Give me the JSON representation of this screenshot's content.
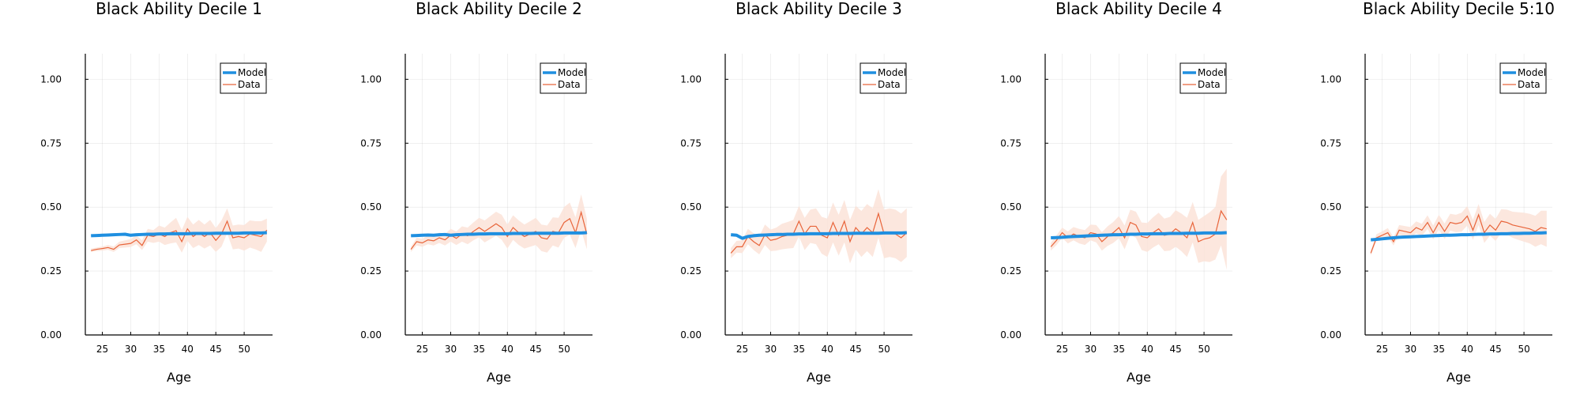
{
  "figure": {
    "xlabel": "Age"
  },
  "colors": {
    "model": "#1f8fe0",
    "data": "#e8643a",
    "band": "#fbe3d8"
  },
  "legend": {
    "placement": "top-right",
    "entries": [
      "Model",
      "Data"
    ]
  },
  "chart_data": [
    {
      "type": "line",
      "title": "Black Ability Decile 1",
      "xlabel": "Age",
      "ylabel": "",
      "xlim": [
        22,
        55
      ],
      "ylim": [
        0,
        1.1
      ],
      "xticks": [
        25,
        30,
        35,
        40,
        45,
        50
      ],
      "yticks": [
        "0.00",
        "0.25",
        "0.50",
        "0.75",
        "1.00"
      ],
      "grid": true,
      "legend": "top-right",
      "x": [
        23,
        24,
        25,
        26,
        27,
        28,
        29,
        30,
        31,
        32,
        33,
        34,
        35,
        36,
        37,
        38,
        39,
        40,
        41,
        42,
        43,
        44,
        45,
        46,
        47,
        48,
        49,
        50,
        51,
        52,
        53,
        54
      ],
      "series": [
        {
          "name": "Model",
          "values": [
            0.388,
            0.389,
            0.39,
            0.391,
            0.392,
            0.393,
            0.394,
            0.39,
            0.392,
            0.393,
            0.394,
            0.394,
            0.395,
            0.395,
            0.396,
            0.396,
            0.396,
            0.396,
            0.397,
            0.397,
            0.397,
            0.397,
            0.398,
            0.398,
            0.398,
            0.398,
            0.398,
            0.399,
            0.399,
            0.399,
            0.399,
            0.4
          ]
        },
        {
          "name": "Data",
          "values": [
            0.33,
            0.335,
            0.338,
            0.342,
            0.335,
            0.352,
            0.355,
            0.358,
            0.372,
            0.35,
            0.39,
            0.385,
            0.395,
            0.385,
            0.4,
            0.408,
            0.365,
            0.415,
            0.385,
            0.4,
            0.385,
            0.4,
            0.37,
            0.395,
            0.445,
            0.38,
            0.385,
            0.38,
            0.395,
            0.39,
            0.385,
            0.41
          ],
          "lower": [
            0.325,
            0.328,
            0.33,
            0.333,
            0.325,
            0.34,
            0.342,
            0.344,
            0.355,
            0.332,
            0.365,
            0.36,
            0.365,
            0.352,
            0.358,
            0.362,
            0.322,
            0.368,
            0.34,
            0.352,
            0.338,
            0.35,
            0.325,
            0.345,
            0.398,
            0.335,
            0.338,
            0.33,
            0.342,
            0.335,
            0.325,
            0.365
          ],
          "upper": [
            0.338,
            0.342,
            0.346,
            0.352,
            0.346,
            0.365,
            0.37,
            0.375,
            0.39,
            0.37,
            0.415,
            0.41,
            0.428,
            0.42,
            0.44,
            0.458,
            0.41,
            0.462,
            0.432,
            0.45,
            0.432,
            0.45,
            0.418,
            0.448,
            0.495,
            0.428,
            0.432,
            0.43,
            0.448,
            0.445,
            0.445,
            0.455
          ]
        }
      ]
    },
    {
      "type": "line",
      "title": "Black Ability Decile 2",
      "xlabel": "Age",
      "ylabel": "",
      "xlim": [
        22,
        55
      ],
      "ylim": [
        0,
        1.1
      ],
      "xticks": [
        25,
        30,
        35,
        40,
        45,
        50
      ],
      "yticks": [
        "0.00",
        "0.25",
        "0.50",
        "0.75",
        "1.00"
      ],
      "grid": true,
      "legend": "top-right",
      "x": [
        23,
        24,
        25,
        26,
        27,
        28,
        29,
        30,
        31,
        32,
        33,
        34,
        35,
        36,
        37,
        38,
        39,
        40,
        41,
        42,
        43,
        44,
        45,
        46,
        47,
        48,
        49,
        50,
        51,
        52,
        53,
        54
      ],
      "series": [
        {
          "name": "Model",
          "values": [
            0.388,
            0.389,
            0.39,
            0.391,
            0.39,
            0.392,
            0.393,
            0.39,
            0.392,
            0.393,
            0.394,
            0.394,
            0.395,
            0.395,
            0.396,
            0.396,
            0.396,
            0.396,
            0.397,
            0.397,
            0.397,
            0.397,
            0.398,
            0.398,
            0.398,
            0.398,
            0.398,
            0.399,
            0.399,
            0.399,
            0.399,
            0.4
          ]
        },
        {
          "name": "Data",
          "values": [
            0.335,
            0.365,
            0.36,
            0.372,
            0.368,
            0.38,
            0.372,
            0.39,
            0.378,
            0.395,
            0.388,
            0.405,
            0.42,
            0.405,
            0.42,
            0.435,
            0.42,
            0.385,
            0.42,
            0.4,
            0.385,
            0.395,
            0.405,
            0.38,
            0.375,
            0.405,
            0.4,
            0.44,
            0.455,
            0.4,
            0.48,
            0.395
          ],
          "lower": [
            0.325,
            0.35,
            0.345,
            0.355,
            0.35,
            0.36,
            0.35,
            0.365,
            0.352,
            0.365,
            0.355,
            0.37,
            0.382,
            0.362,
            0.375,
            0.388,
            0.372,
            0.338,
            0.372,
            0.352,
            0.338,
            0.345,
            0.352,
            0.328,
            0.322,
            0.35,
            0.342,
            0.38,
            0.392,
            0.34,
            0.41,
            0.335
          ],
          "upper": [
            0.345,
            0.38,
            0.376,
            0.39,
            0.388,
            0.4,
            0.395,
            0.415,
            0.405,
            0.425,
            0.42,
            0.44,
            0.458,
            0.448,
            0.465,
            0.482,
            0.47,
            0.432,
            0.468,
            0.448,
            0.432,
            0.445,
            0.458,
            0.432,
            0.428,
            0.46,
            0.458,
            0.5,
            0.518,
            0.46,
            0.55,
            0.455
          ]
        }
      ]
    },
    {
      "type": "line",
      "title": "Black Ability Decile 3",
      "xlabel": "Age",
      "ylabel": "",
      "xlim": [
        22,
        55
      ],
      "ylim": [
        0,
        1.1
      ],
      "xticks": [
        25,
        30,
        35,
        40,
        45,
        50
      ],
      "yticks": [
        "0.00",
        "0.25",
        "0.50",
        "0.75",
        "1.00"
      ],
      "grid": true,
      "legend": "top-right",
      "x": [
        23,
        24,
        25,
        26,
        27,
        28,
        29,
        30,
        31,
        32,
        33,
        34,
        35,
        36,
        37,
        38,
        39,
        40,
        41,
        42,
        43,
        44,
        45,
        46,
        47,
        48,
        49,
        50,
        51,
        52,
        53,
        54
      ],
      "series": [
        {
          "name": "Model",
          "values": [
            0.392,
            0.39,
            0.378,
            0.385,
            0.388,
            0.39,
            0.391,
            0.392,
            0.393,
            0.393,
            0.394,
            0.394,
            0.395,
            0.395,
            0.396,
            0.396,
            0.396,
            0.396,
            0.397,
            0.397,
            0.397,
            0.397,
            0.398,
            0.398,
            0.398,
            0.398,
            0.398,
            0.399,
            0.399,
            0.399,
            0.399,
            0.4
          ]
        },
        {
          "name": "Data",
          "values": [
            0.32,
            0.345,
            0.345,
            0.385,
            0.365,
            0.35,
            0.392,
            0.37,
            0.375,
            0.385,
            0.39,
            0.395,
            0.445,
            0.395,
            0.425,
            0.425,
            0.39,
            0.38,
            0.44,
            0.39,
            0.445,
            0.365,
            0.42,
            0.395,
            0.42,
            0.4,
            0.475,
            0.395,
            0.4,
            0.395,
            0.38,
            0.4
          ],
          "lower": [
            0.3,
            0.322,
            0.32,
            0.355,
            0.332,
            0.315,
            0.352,
            0.328,
            0.33,
            0.335,
            0.338,
            0.34,
            0.385,
            0.332,
            0.36,
            0.355,
            0.318,
            0.305,
            0.362,
            0.31,
            0.362,
            0.28,
            0.335,
            0.305,
            0.328,
            0.305,
            0.38,
            0.3,
            0.305,
            0.3,
            0.285,
            0.305
          ],
          "upper": [
            0.34,
            0.368,
            0.37,
            0.415,
            0.398,
            0.385,
            0.432,
            0.412,
            0.42,
            0.435,
            0.442,
            0.45,
            0.505,
            0.458,
            0.49,
            0.495,
            0.462,
            0.455,
            0.518,
            0.47,
            0.528,
            0.45,
            0.505,
            0.485,
            0.512,
            0.495,
            0.57,
            0.49,
            0.495,
            0.49,
            0.475,
            0.495
          ]
        }
      ]
    },
    {
      "type": "line",
      "title": "Black Ability Decile 4",
      "xlabel": "Age",
      "ylabel": "",
      "xlim": [
        22,
        55
      ],
      "ylim": [
        0,
        1.1
      ],
      "xticks": [
        25,
        30,
        35,
        40,
        45,
        50
      ],
      "yticks": [
        "0.00",
        "0.25",
        "0.50",
        "0.75",
        "1.00"
      ],
      "grid": true,
      "legend": "top-right",
      "x": [
        23,
        24,
        25,
        26,
        27,
        28,
        29,
        30,
        31,
        32,
        33,
        34,
        35,
        36,
        37,
        38,
        39,
        40,
        41,
        42,
        43,
        44,
        45,
        46,
        47,
        48,
        49,
        50,
        51,
        52,
        53,
        54
      ],
      "series": [
        {
          "name": "Model",
          "values": [
            0.38,
            0.381,
            0.382,
            0.384,
            0.385,
            0.386,
            0.387,
            0.388,
            0.389,
            0.39,
            0.391,
            0.392,
            0.392,
            0.393,
            0.394,
            0.394,
            0.395,
            0.395,
            0.396,
            0.396,
            0.396,
            0.397,
            0.397,
            0.397,
            0.398,
            0.398,
            0.398,
            0.399,
            0.399,
            0.399,
            0.399,
            0.4
          ]
        },
        {
          "name": "Data",
          "values": [
            0.345,
            0.37,
            0.4,
            0.38,
            0.395,
            0.385,
            0.38,
            0.4,
            0.395,
            0.365,
            0.385,
            0.4,
            0.42,
            0.38,
            0.44,
            0.43,
            0.385,
            0.38,
            0.4,
            0.415,
            0.39,
            0.395,
            0.415,
            0.4,
            0.38,
            0.44,
            0.365,
            0.375,
            0.38,
            0.395,
            0.485,
            0.45
          ],
          "lower": [
            0.33,
            0.352,
            0.38,
            0.358,
            0.37,
            0.358,
            0.352,
            0.37,
            0.362,
            0.33,
            0.348,
            0.36,
            0.378,
            0.335,
            0.392,
            0.38,
            0.332,
            0.325,
            0.342,
            0.355,
            0.328,
            0.33,
            0.345,
            0.328,
            0.305,
            0.362,
            0.282,
            0.288,
            0.285,
            0.295,
            0.35,
            0.255
          ],
          "upper": [
            0.36,
            0.39,
            0.42,
            0.405,
            0.422,
            0.415,
            0.41,
            0.432,
            0.43,
            0.402,
            0.425,
            0.442,
            0.465,
            0.428,
            0.49,
            0.482,
            0.44,
            0.438,
            0.46,
            0.478,
            0.455,
            0.462,
            0.488,
            0.475,
            0.458,
            0.52,
            0.45,
            0.465,
            0.48,
            0.5,
            0.62,
            0.65
          ]
        }
      ]
    },
    {
      "type": "line",
      "title": "Black Ability Decile 5:10",
      "xlabel": "Age",
      "ylabel": "",
      "xlim": [
        22,
        55
      ],
      "ylim": [
        0,
        1.1
      ],
      "xticks": [
        25,
        30,
        35,
        40,
        45,
        50
      ],
      "yticks": [
        "0.00",
        "0.25",
        "0.50",
        "0.75",
        "1.00"
      ],
      "grid": true,
      "legend": "top-right",
      "x": [
        23,
        24,
        25,
        26,
        27,
        28,
        29,
        30,
        31,
        32,
        33,
        34,
        35,
        36,
        37,
        38,
        39,
        40,
        41,
        42,
        43,
        44,
        45,
        46,
        47,
        48,
        49,
        50,
        51,
        52,
        53,
        54
      ],
      "series": [
        {
          "name": "Model",
          "values": [
            0.372,
            0.374,
            0.376,
            0.378,
            0.38,
            0.382,
            0.383,
            0.384,
            0.385,
            0.386,
            0.387,
            0.388,
            0.389,
            0.39,
            0.39,
            0.391,
            0.392,
            0.392,
            0.393,
            0.394,
            0.394,
            0.395,
            0.395,
            0.396,
            0.396,
            0.397,
            0.397,
            0.398,
            0.398,
            0.399,
            0.399,
            0.4
          ]
        },
        {
          "name": "Data",
          "values": [
            0.32,
            0.38,
            0.39,
            0.4,
            0.365,
            0.41,
            0.405,
            0.4,
            0.42,
            0.41,
            0.44,
            0.4,
            0.44,
            0.405,
            0.44,
            0.435,
            0.44,
            0.465,
            0.41,
            0.47,
            0.4,
            0.43,
            0.41,
            0.445,
            0.44,
            0.43,
            0.425,
            0.42,
            0.415,
            0.405,
            0.42,
            0.415
          ],
          "lower": [
            0.31,
            0.368,
            0.376,
            0.384,
            0.35,
            0.392,
            0.386,
            0.38,
            0.398,
            0.387,
            0.415,
            0.374,
            0.412,
            0.376,
            0.408,
            0.402,
            0.404,
            0.428,
            0.372,
            0.43,
            0.36,
            0.388,
            0.368,
            0.4,
            0.392,
            0.38,
            0.372,
            0.365,
            0.358,
            0.345,
            0.355,
            0.345
          ],
          "upper": [
            0.33,
            0.394,
            0.405,
            0.418,
            0.382,
            0.43,
            0.426,
            0.422,
            0.444,
            0.435,
            0.468,
            0.428,
            0.47,
            0.436,
            0.474,
            0.47,
            0.478,
            0.504,
            0.45,
            0.512,
            0.442,
            0.474,
            0.454,
            0.492,
            0.49,
            0.482,
            0.48,
            0.478,
            0.474,
            0.466,
            0.486,
            0.486
          ]
        }
      ]
    }
  ]
}
